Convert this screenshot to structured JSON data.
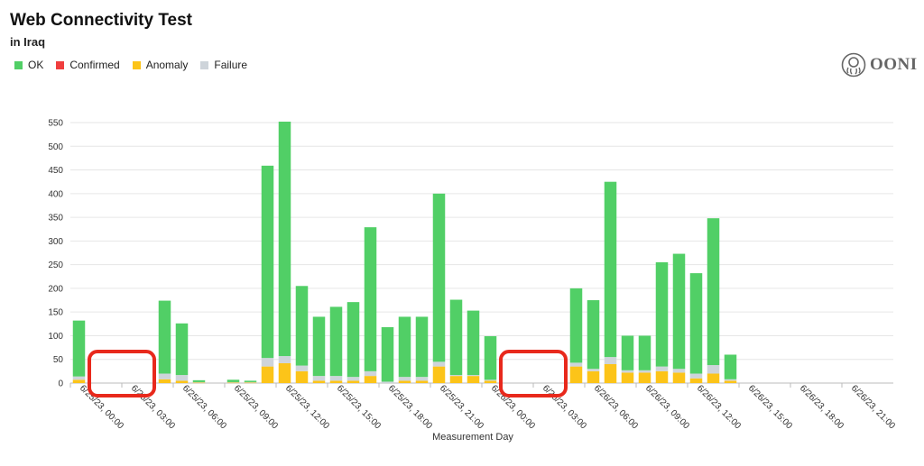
{
  "header": {
    "title": "Web Connectivity Test",
    "subtitle": "in Iraq",
    "logo_text": "OONI"
  },
  "legend": [
    {
      "label": "OK",
      "color": "#51cf66"
    },
    {
      "label": "Confirmed",
      "color": "#f03e3e"
    },
    {
      "label": "Anomaly",
      "color": "#fcc419"
    },
    {
      "label": "Failure",
      "color": "#ced4da"
    }
  ],
  "highlight_color": "#e8291c",
  "chart_data": {
    "type": "bar",
    "stacked": true,
    "xlabel": "Measurement Day",
    "ylabel": "",
    "ylim": [
      0,
      550
    ],
    "yticks": [
      0,
      50,
      100,
      150,
      200,
      250,
      300,
      350,
      400,
      450,
      500,
      550
    ],
    "grid": true,
    "categories": [
      "6/25/23, 00:00",
      "6/25/23, 01:00",
      "6/25/23, 02:00",
      "6/25/23, 03:00",
      "6/25/23, 04:00",
      "6/25/23, 05:00",
      "6/25/23, 06:00",
      "6/25/23, 07:00",
      "6/25/23, 08:00",
      "6/25/23, 09:00",
      "6/25/23, 10:00",
      "6/25/23, 11:00",
      "6/25/23, 12:00",
      "6/25/23, 13:00",
      "6/25/23, 14:00",
      "6/25/23, 15:00",
      "6/25/23, 16:00",
      "6/25/23, 17:00",
      "6/25/23, 18:00",
      "6/25/23, 19:00",
      "6/25/23, 20:00",
      "6/25/23, 21:00",
      "6/25/23, 22:00",
      "6/25/23, 23:00",
      "6/26/23, 00:00",
      "6/26/23, 01:00",
      "6/26/23, 02:00",
      "6/26/23, 03:00",
      "6/26/23, 04:00",
      "6/26/23, 05:00",
      "6/26/23, 06:00",
      "6/26/23, 07:00",
      "6/26/23, 08:00",
      "6/26/23, 09:00",
      "6/26/23, 10:00",
      "6/26/23, 11:00",
      "6/26/23, 12:00",
      "6/26/23, 13:00",
      "6/26/23, 14:00",
      "6/26/23, 15:00",
      "6/26/23, 16:00",
      "6/26/23, 17:00",
      "6/26/23, 18:00",
      "6/26/23, 19:00",
      "6/26/23, 20:00",
      "6/26/23, 21:00",
      "6/26/23, 22:00",
      "6/26/23, 23:00"
    ],
    "tick_labels": [
      "6/25/23, 00:00",
      "6/25/23, 03:00",
      "6/25/23, 06:00",
      "6/25/23, 09:00",
      "6/25/23, 12:00",
      "6/25/23, 15:00",
      "6/25/23, 18:00",
      "6/25/23, 21:00",
      "6/26/23, 00:00",
      "6/26/23, 03:00",
      "6/26/23, 06:00",
      "6/26/23, 09:00",
      "6/26/23, 12:00",
      "6/26/23, 15:00",
      "6/26/23, 18:00",
      "6/26/23, 21:00"
    ],
    "series": [
      {
        "name": "Anomaly",
        "color": "#fcc419",
        "values": [
          7,
          0,
          0,
          0,
          0,
          8,
          5,
          1,
          0,
          1,
          1,
          35,
          42,
          25,
          5,
          5,
          5,
          15,
          0,
          5,
          5,
          35,
          15,
          15,
          5,
          0,
          0,
          0,
          0,
          35,
          25,
          40,
          22,
          22,
          25,
          22,
          10,
          20,
          5,
          0,
          0,
          0,
          0,
          0,
          0,
          0,
          0,
          0
        ]
      },
      {
        "name": "Failure",
        "color": "#ced4da",
        "values": [
          7,
          0,
          0,
          0,
          0,
          12,
          12,
          1,
          0,
          1,
          1,
          18,
          15,
          12,
          10,
          10,
          8,
          10,
          3,
          8,
          8,
          10,
          2,
          2,
          2,
          0,
          0,
          0,
          0,
          8,
          5,
          15,
          5,
          5,
          10,
          8,
          10,
          18,
          3,
          0,
          0,
          0,
          0,
          0,
          0,
          0,
          0,
          0
        ]
      },
      {
        "name": "OK",
        "color": "#51cf66",
        "values": [
          118,
          0,
          0,
          0,
          0,
          154,
          109,
          4,
          0,
          5,
          3,
          406,
          495,
          168,
          125,
          146,
          158,
          304,
          115,
          127,
          127,
          355,
          159,
          136,
          92,
          0,
          0,
          0,
          0,
          157,
          145,
          370,
          73,
          73,
          220,
          243,
          212,
          310,
          52,
          0,
          0,
          0,
          0,
          0,
          0,
          0,
          0,
          0
        ]
      }
    ],
    "highlights": [
      {
        "from": "6/25/23, 01:00",
        "to": "6/25/23, 04:00"
      },
      {
        "from": "6/26/23, 01:00",
        "to": "6/26/23, 04:00"
      }
    ]
  }
}
